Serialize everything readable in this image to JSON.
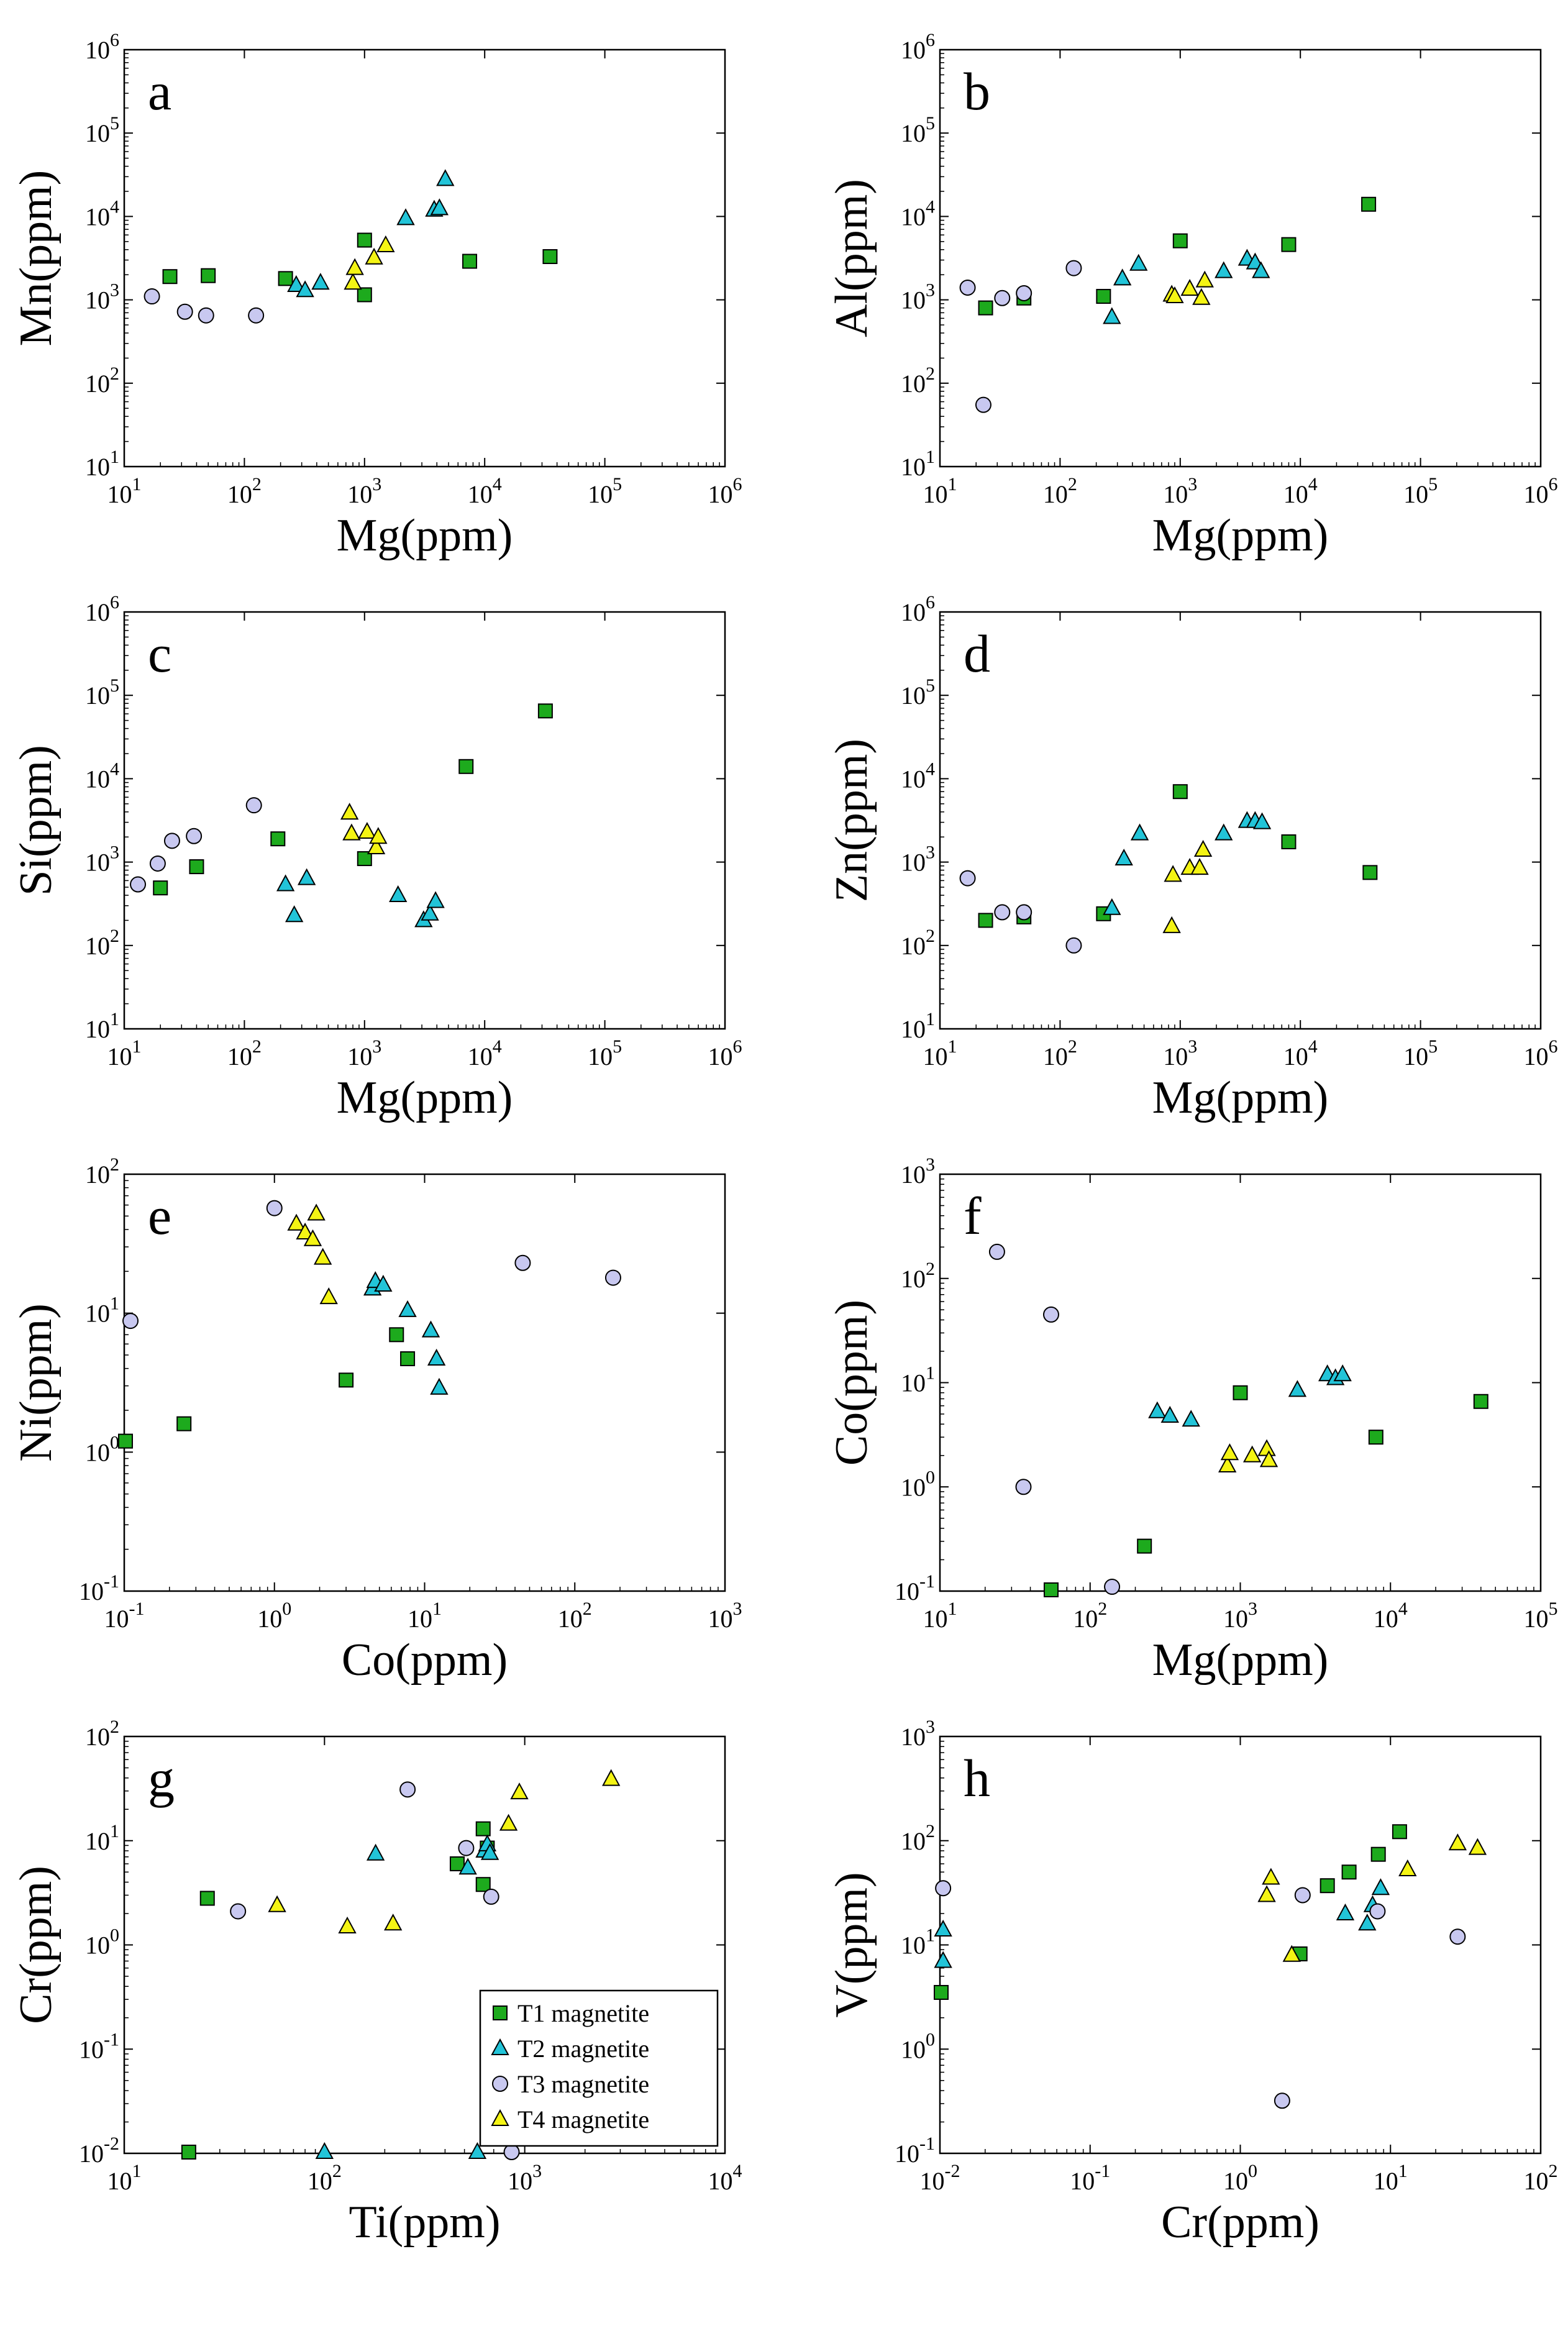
{
  "chart_data": [
    {
      "panel": "a",
      "type": "scatter",
      "xscale": "log",
      "yscale": "log",
      "xlabel": "Mg(ppm)",
      "ylabel": "Mn(ppm)",
      "xlim": [
        10,
        1000000
      ],
      "ylim": [
        10,
        1000000
      ],
      "series": [
        {
          "name": "T1 magnetite",
          "marker": "square",
          "color": "#1daa1d",
          "points": [
            [
              24,
              1900
            ],
            [
              50,
              1950
            ],
            [
              220,
              1800
            ],
            [
              1000,
              5200
            ],
            [
              1000,
              1150
            ],
            [
              7500,
              2900
            ],
            [
              35000,
              3300
            ]
          ]
        },
        {
          "name": "T2 magnetite",
          "marker": "triangle",
          "color": "#22c4d8",
          "points": [
            [
              270,
              1500
            ],
            [
              320,
              1300
            ],
            [
              430,
              1600
            ],
            [
              2200,
              9500
            ],
            [
              3800,
              12000
            ],
            [
              4200,
              12500
            ],
            [
              4700,
              28000
            ]
          ]
        },
        {
          "name": "T3 magnetite",
          "marker": "circle",
          "color": "#c8c8f0",
          "points": [
            [
              17,
              1100
            ],
            [
              32,
              720
            ],
            [
              48,
              650
            ],
            [
              125,
              650
            ]
          ]
        },
        {
          "name": "T4 magnetite",
          "marker": "triangle",
          "color": "#f4f414",
          "points": [
            [
              800,
              1600
            ],
            [
              830,
              2400
            ],
            [
              1200,
              3200
            ],
            [
              1500,
              4500
            ]
          ]
        }
      ]
    },
    {
      "panel": "b",
      "type": "scatter",
      "xscale": "log",
      "yscale": "log",
      "xlabel": "Mg(ppm)",
      "ylabel": "Al(ppm)",
      "xlim": [
        10,
        1000000
      ],
      "ylim": [
        10,
        1000000
      ],
      "series": [
        {
          "name": "T1 magnetite",
          "marker": "square",
          "color": "#1daa1d",
          "points": [
            [
              24,
              800
            ],
            [
              50,
              1050
            ],
            [
              230,
              1100
            ],
            [
              1000,
              5100
            ],
            [
              8000,
              4600
            ],
            [
              37000,
              14000
            ]
          ]
        },
        {
          "name": "T2 magnetite",
          "marker": "triangle",
          "color": "#22c4d8",
          "points": [
            [
              270,
              620
            ],
            [
              330,
              1800
            ],
            [
              450,
              2700
            ],
            [
              2300,
              2200
            ],
            [
              3600,
              3100
            ],
            [
              4200,
              2800
            ],
            [
              4700,
              2200
            ]
          ]
        },
        {
          "name": "T3 magnetite",
          "marker": "circle",
          "color": "#c8c8f0",
          "points": [
            [
              17,
              1400
            ],
            [
              23,
              55
            ],
            [
              33,
              1050
            ],
            [
              50,
              1200
            ],
            [
              130,
              2400
            ]
          ]
        },
        {
          "name": "T4 magnetite",
          "marker": "triangle",
          "color": "#f4f414",
          "points": [
            [
              850,
              1150
            ],
            [
              900,
              1100
            ],
            [
              1200,
              1350
            ],
            [
              1500,
              1050
            ],
            [
              1600,
              1700
            ]
          ]
        }
      ]
    },
    {
      "panel": "c",
      "type": "scatter",
      "xscale": "log",
      "yscale": "log",
      "xlabel": "Mg(ppm)",
      "ylabel": "Si(ppm)",
      "xlim": [
        10,
        1000000
      ],
      "ylim": [
        10,
        1000000
      ],
      "series": [
        {
          "name": "T1 magnetite",
          "marker": "square",
          "color": "#1daa1d",
          "points": [
            [
              20,
              490
            ],
            [
              40,
              880
            ],
            [
              190,
              1900
            ],
            [
              1000,
              1100
            ],
            [
              7000,
              14000
            ],
            [
              32000,
              65000
            ]
          ]
        },
        {
          "name": "T2 magnetite",
          "marker": "triangle",
          "color": "#22c4d8",
          "points": [
            [
              220,
              540
            ],
            [
              260,
              230
            ],
            [
              330,
              640
            ],
            [
              1900,
              400
            ],
            [
              3100,
              200
            ],
            [
              3500,
              240
            ],
            [
              3900,
              340
            ]
          ]
        },
        {
          "name": "T3 magnetite",
          "marker": "circle",
          "color": "#c8c8f0",
          "points": [
            [
              13,
              540
            ],
            [
              19,
              960
            ],
            [
              25,
              1800
            ],
            [
              38,
              2050
            ],
            [
              120,
              4800
            ]
          ]
        },
        {
          "name": "T4 magnetite",
          "marker": "triangle",
          "color": "#f4f414",
          "points": [
            [
              750,
              3900
            ],
            [
              780,
              2200
            ],
            [
              1050,
              2300
            ],
            [
              1250,
              1500
            ],
            [
              1300,
              2000
            ]
          ]
        }
      ]
    },
    {
      "panel": "d",
      "type": "scatter",
      "xscale": "log",
      "yscale": "log",
      "xlabel": "Mg(ppm)",
      "ylabel": "Zn(ppm)",
      "xlim": [
        10,
        1000000
      ],
      "ylim": [
        10,
        1000000
      ],
      "series": [
        {
          "name": "T1 magnetite",
          "marker": "square",
          "color": "#1daa1d",
          "points": [
            [
              24,
              200
            ],
            [
              50,
              220
            ],
            [
              230,
              240
            ],
            [
              1000,
              7000
            ],
            [
              8000,
              1750
            ],
            [
              38000,
              750
            ]
          ]
        },
        {
          "name": "T2 magnetite",
          "marker": "triangle",
          "color": "#22c4d8",
          "points": [
            [
              270,
              280
            ],
            [
              340,
              1100
            ],
            [
              460,
              2200
            ],
            [
              2300,
              2200
            ],
            [
              3600,
              3100
            ],
            [
              4200,
              3100
            ],
            [
              4800,
              3000
            ]
          ]
        },
        {
          "name": "T3 magnetite",
          "marker": "circle",
          "color": "#c8c8f0",
          "points": [
            [
              17,
              640
            ],
            [
              33,
              250
            ],
            [
              50,
              250
            ],
            [
              130,
              100
            ]
          ]
        },
        {
          "name": "T4 magnetite",
          "marker": "triangle",
          "color": "#f4f414",
          "points": [
            [
              850,
              170
            ],
            [
              870,
              700
            ],
            [
              1200,
              850
            ],
            [
              1450,
              850
            ],
            [
              1550,
              1400
            ]
          ]
        }
      ]
    },
    {
      "panel": "e",
      "type": "scatter",
      "xscale": "log",
      "yscale": "log",
      "xlabel": "Co(ppm)",
      "ylabel": "Ni(ppm)",
      "xlim": [
        0.1,
        1000
      ],
      "ylim": [
        0.1,
        100
      ],
      "series": [
        {
          "name": "T1 magnetite",
          "marker": "square",
          "color": "#1daa1d",
          "points": [
            [
              0.1,
              1.2
            ],
            [
              0.25,
              1.6
            ],
            [
              3.0,
              3.3
            ],
            [
              6.5,
              7.0
            ],
            [
              7.7,
              4.7
            ]
          ]
        },
        {
          "name": "T2 magnetite",
          "marker": "triangle",
          "color": "#22c4d8",
          "points": [
            [
              4.5,
              15.0
            ],
            [
              4.7,
              17.0
            ],
            [
              5.3,
              16.0
            ],
            [
              7.7,
              10.5
            ],
            [
              11.0,
              7.5
            ],
            [
              12.0,
              4.7
            ],
            [
              12.5,
              2.9
            ]
          ]
        },
        {
          "name": "T3 magnetite",
          "marker": "circle",
          "color": "#c8c8f0",
          "points": [
            [
              0.11,
              8.8
            ],
            [
              1.0,
              57
            ],
            [
              45,
              23
            ],
            [
              180,
              18
            ]
          ]
        },
        {
          "name": "T4 magnetite",
          "marker": "triangle",
          "color": "#f4f414",
          "points": [
            [
              1.4,
              44
            ],
            [
              1.6,
              38
            ],
            [
              1.8,
              34
            ],
            [
              1.9,
              52
            ],
            [
              2.1,
              25
            ],
            [
              2.3,
              13
            ]
          ]
        }
      ]
    },
    {
      "panel": "f",
      "type": "scatter",
      "xscale": "log",
      "yscale": "log",
      "xlabel": "Mg(ppm)",
      "ylabel": "Co(ppm)",
      "xlim": [
        10,
        100000
      ],
      "ylim": [
        0.1,
        1000
      ],
      "series": [
        {
          "name": "T1 magnetite",
          "marker": "square",
          "color": "#1daa1d",
          "points": [
            [
              55,
              0.1
            ],
            [
              230,
              0.27
            ],
            [
              1000,
              8.0
            ],
            [
              8000,
              3.0
            ],
            [
              40000,
              6.6
            ]
          ]
        },
        {
          "name": "T2 magnetite",
          "marker": "triangle",
          "color": "#22c4d8",
          "points": [
            [
              280,
              5.3
            ],
            [
              340,
              4.8
            ],
            [
              470,
              4.4
            ],
            [
              2400,
              8.5
            ],
            [
              3800,
              12
            ],
            [
              4300,
              11
            ],
            [
              4800,
              12
            ]
          ]
        },
        {
          "name": "T3 magnetite",
          "marker": "circle",
          "color": "#c8c8f0",
          "points": [
            [
              24,
              180
            ],
            [
              36,
              1.0
            ],
            [
              55,
              45
            ],
            [
              140,
              0.11
            ]
          ]
        },
        {
          "name": "T4 magnetite",
          "marker": "triangle",
          "color": "#f4f414",
          "points": [
            [
              820,
              1.6
            ],
            [
              850,
              2.1
            ],
            [
              1200,
              2.0
            ],
            [
              1500,
              2.3
            ],
            [
              1550,
              1.8
            ]
          ]
        }
      ]
    },
    {
      "panel": "g",
      "type": "scatter",
      "xscale": "log",
      "yscale": "log",
      "xlabel": "Ti(ppm)",
      "ylabel": "Cr(ppm)",
      "xlim": [
        10,
        10000
      ],
      "ylim": [
        0.01,
        100
      ],
      "series": [
        {
          "name": "T1 magnetite",
          "marker": "square",
          "color": "#1daa1d",
          "points": [
            [
              21,
              0.01
            ],
            [
              26,
              2.8
            ],
            [
              460,
              6.0
            ],
            [
              620,
              13
            ],
            [
              620,
              3.8
            ],
            [
              650,
              8.5
            ]
          ]
        },
        {
          "name": "T2 magnetite",
          "marker": "triangle",
          "color": "#22c4d8",
          "points": [
            [
              100,
              0.01
            ],
            [
              180,
              7.5
            ],
            [
              520,
              5.5
            ],
            [
              580,
              0.01
            ],
            [
              630,
              8.0
            ],
            [
              650,
              9.2
            ],
            [
              670,
              7.6
            ]
          ]
        },
        {
          "name": "T3 magnetite",
          "marker": "circle",
          "color": "#c8c8f0",
          "points": [
            [
              37,
              2.1
            ],
            [
              260,
              31
            ],
            [
              510,
              8.5
            ],
            [
              680,
              2.9
            ],
            [
              860,
              0.01
            ]
          ]
        },
        {
          "name": "T4 magnetite",
          "marker": "triangle",
          "color": "#f4f414",
          "points": [
            [
              58,
              2.4
            ],
            [
              130,
              1.5
            ],
            [
              220,
              1.6
            ],
            [
              830,
              14.5
            ],
            [
              940,
              29
            ],
            [
              2700,
              39
            ]
          ]
        }
      ]
    },
    {
      "panel": "h",
      "type": "scatter",
      "xscale": "log",
      "yscale": "log",
      "xlabel": "Cr(ppm)",
      "ylabel": "V(ppm)",
      "xlim": [
        0.01,
        100
      ],
      "ylim": [
        0.1,
        1000
      ],
      "series": [
        {
          "name": "T1 magnetite",
          "marker": "square",
          "color": "#1daa1d",
          "points": [
            [
              0.01,
              3.5
            ],
            [
              2.5,
              8.2
            ],
            [
              3.8,
              37
            ],
            [
              5.3,
              50
            ],
            [
              8.3,
              74
            ],
            [
              11.5,
              122
            ]
          ]
        },
        {
          "name": "T2 magnetite",
          "marker": "triangle",
          "color": "#22c4d8",
          "points": [
            [
              0.0105,
              7.0
            ],
            [
              0.0105,
              14
            ],
            [
              5.0,
              20
            ],
            [
              7.0,
              16
            ],
            [
              7.6,
              24
            ],
            [
              8.6,
              35
            ]
          ]
        },
        {
          "name": "T3 magnetite",
          "marker": "circle",
          "color": "#c8c8f0",
          "points": [
            [
              0.0105,
              35
            ],
            [
              1.9,
              0.32
            ],
            [
              2.6,
              30
            ],
            [
              8.2,
              21
            ],
            [
              28,
              12
            ]
          ]
        },
        {
          "name": "T4 magnetite",
          "marker": "triangle",
          "color": "#f4f414",
          "points": [
            [
              1.5,
              30
            ],
            [
              1.6,
              44
            ],
            [
              2.2,
              8.0
            ],
            [
              13,
              53
            ],
            [
              28,
              94
            ],
            [
              38,
              85
            ]
          ]
        }
      ]
    }
  ],
  "legend": {
    "panel": "g",
    "placement": "bottom-right",
    "items": [
      {
        "label": "T1 magnetite",
        "marker": "square",
        "color": "#1daa1d"
      },
      {
        "label": "T2 magnetite",
        "marker": "triangle",
        "color": "#22c4d8"
      },
      {
        "label": "T3 magnetite",
        "marker": "circle",
        "color": "#c8c8f0"
      },
      {
        "label": "T4 magnetite",
        "marker": "triangle",
        "color": "#f4f414"
      }
    ]
  }
}
